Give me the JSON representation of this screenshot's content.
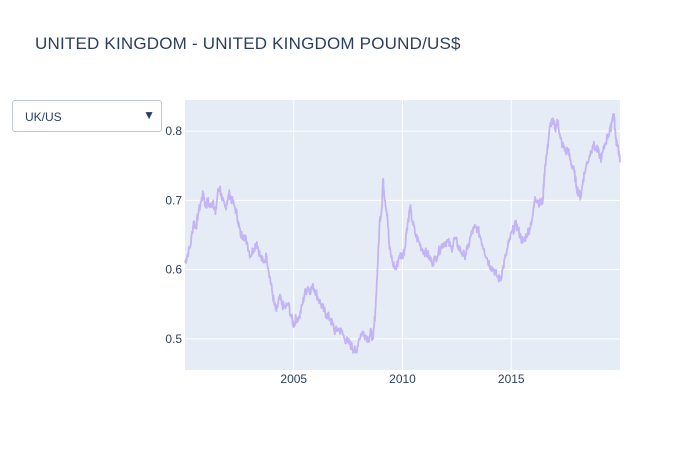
{
  "chart_data": {
    "type": "line",
    "title": "UNITED KINGDOM - UNITED KINGDOM POUND/US$",
    "xlabel": "",
    "ylabel": "",
    "x_range": [
      2000.0,
      2020.0
    ],
    "ylim": [
      0.455,
      0.845
    ],
    "grid": true,
    "x_ticks": [
      {
        "value": 2005,
        "label": "2005"
      },
      {
        "value": 2010,
        "label": "2010"
      },
      {
        "value": 2015,
        "label": "2015"
      }
    ],
    "y_ticks": [
      {
        "value": 0.5,
        "label": "0.5"
      },
      {
        "value": 0.6,
        "label": "0.6"
      },
      {
        "value": 0.7,
        "label": "0.7"
      },
      {
        "value": 0.8,
        "label": "0.8"
      }
    ],
    "series": [
      {
        "color": "#c3b4f3",
        "points": [
          [
            2000.0,
            0.61
          ],
          [
            2000.1,
            0.62
          ],
          [
            2000.25,
            0.635
          ],
          [
            2000.4,
            0.67
          ],
          [
            2000.5,
            0.66
          ],
          [
            2000.6,
            0.68
          ],
          [
            2000.75,
            0.7
          ],
          [
            2000.85,
            0.71
          ],
          [
            2000.95,
            0.69
          ],
          [
            2001.05,
            0.7
          ],
          [
            2001.15,
            0.69
          ],
          [
            2001.3,
            0.7
          ],
          [
            2001.4,
            0.68
          ],
          [
            2001.5,
            0.71
          ],
          [
            2001.6,
            0.72
          ],
          [
            2001.7,
            0.7
          ],
          [
            2001.85,
            0.69
          ],
          [
            2001.95,
            0.7
          ],
          [
            2002.05,
            0.71
          ],
          [
            2002.15,
            0.7
          ],
          [
            2002.3,
            0.69
          ],
          [
            2002.45,
            0.67
          ],
          [
            2002.55,
            0.65
          ],
          [
            2002.7,
            0.65
          ],
          [
            2002.85,
            0.64
          ],
          [
            2003.0,
            0.62
          ],
          [
            2003.15,
            0.63
          ],
          [
            2003.3,
            0.64
          ],
          [
            2003.45,
            0.62
          ],
          [
            2003.6,
            0.61
          ],
          [
            2003.75,
            0.62
          ],
          [
            2003.9,
            0.59
          ],
          [
            2004.0,
            0.57
          ],
          [
            2004.1,
            0.55
          ],
          [
            2004.2,
            0.54
          ],
          [
            2004.35,
            0.56
          ],
          [
            2004.45,
            0.55
          ],
          [
            2004.6,
            0.545
          ],
          [
            2004.75,
            0.55
          ],
          [
            2004.9,
            0.53
          ],
          [
            2005.0,
            0.52
          ],
          [
            2005.1,
            0.53
          ],
          [
            2005.25,
            0.53
          ],
          [
            2005.4,
            0.55
          ],
          [
            2005.5,
            0.565
          ],
          [
            2005.65,
            0.575
          ],
          [
            2005.75,
            0.57
          ],
          [
            2005.9,
            0.575
          ],
          [
            2006.0,
            0.57
          ],
          [
            2006.1,
            0.56
          ],
          [
            2006.25,
            0.55
          ],
          [
            2006.4,
            0.54
          ],
          [
            2006.5,
            0.535
          ],
          [
            2006.65,
            0.53
          ],
          [
            2006.8,
            0.52
          ],
          [
            2006.9,
            0.51
          ],
          [
            2007.05,
            0.515
          ],
          [
            2007.2,
            0.51
          ],
          [
            2007.35,
            0.5
          ],
          [
            2007.5,
            0.495
          ],
          [
            2007.65,
            0.49
          ],
          [
            2007.75,
            0.485
          ],
          [
            2007.85,
            0.48
          ],
          [
            2008.0,
            0.5
          ],
          [
            2008.15,
            0.51
          ],
          [
            2008.3,
            0.505
          ],
          [
            2008.45,
            0.5
          ],
          [
            2008.55,
            0.51
          ],
          [
            2008.65,
            0.5
          ],
          [
            2008.75,
            0.54
          ],
          [
            2008.85,
            0.6
          ],
          [
            2008.95,
            0.67
          ],
          [
            2009.05,
            0.69
          ],
          [
            2009.1,
            0.73
          ],
          [
            2009.2,
            0.7
          ],
          [
            2009.3,
            0.68
          ],
          [
            2009.4,
            0.63
          ],
          [
            2009.55,
            0.61
          ],
          [
            2009.7,
            0.6
          ],
          [
            2009.85,
            0.62
          ],
          [
            2010.0,
            0.62
          ],
          [
            2010.1,
            0.63
          ],
          [
            2010.2,
            0.66
          ],
          [
            2010.3,
            0.68
          ],
          [
            2010.35,
            0.69
          ],
          [
            2010.45,
            0.67
          ],
          [
            2010.6,
            0.65
          ],
          [
            2010.75,
            0.64
          ],
          [
            2010.9,
            0.63
          ],
          [
            2011.05,
            0.625
          ],
          [
            2011.2,
            0.62
          ],
          [
            2011.35,
            0.61
          ],
          [
            2011.5,
            0.615
          ],
          [
            2011.65,
            0.625
          ],
          [
            2011.8,
            0.635
          ],
          [
            2011.95,
            0.64
          ],
          [
            2012.1,
            0.64
          ],
          [
            2012.25,
            0.63
          ],
          [
            2012.4,
            0.645
          ],
          [
            2012.55,
            0.635
          ],
          [
            2012.7,
            0.625
          ],
          [
            2012.85,
            0.62
          ],
          [
            2013.0,
            0.63
          ],
          [
            2013.15,
            0.65
          ],
          [
            2013.3,
            0.66
          ],
          [
            2013.45,
            0.66
          ],
          [
            2013.6,
            0.645
          ],
          [
            2013.75,
            0.63
          ],
          [
            2013.9,
            0.615
          ],
          [
            2014.05,
            0.605
          ],
          [
            2014.2,
            0.6
          ],
          [
            2014.35,
            0.59
          ],
          [
            2014.5,
            0.585
          ],
          [
            2014.6,
            0.6
          ],
          [
            2014.75,
            0.62
          ],
          [
            2014.9,
            0.64
          ],
          [
            2015.05,
            0.655
          ],
          [
            2015.2,
            0.665
          ],
          [
            2015.3,
            0.66
          ],
          [
            2015.45,
            0.645
          ],
          [
            2015.55,
            0.64
          ],
          [
            2015.7,
            0.65
          ],
          [
            2015.85,
            0.66
          ],
          [
            2016.0,
            0.68
          ],
          [
            2016.1,
            0.705
          ],
          [
            2016.2,
            0.7
          ],
          [
            2016.35,
            0.695
          ],
          [
            2016.45,
            0.7
          ],
          [
            2016.55,
            0.75
          ],
          [
            2016.65,
            0.77
          ],
          [
            2016.75,
            0.8
          ],
          [
            2016.85,
            0.815
          ],
          [
            2016.95,
            0.81
          ],
          [
            2017.05,
            0.805
          ],
          [
            2017.15,
            0.815
          ],
          [
            2017.25,
            0.79
          ],
          [
            2017.35,
            0.78
          ],
          [
            2017.5,
            0.77
          ],
          [
            2017.6,
            0.775
          ],
          [
            2017.7,
            0.76
          ],
          [
            2017.8,
            0.75
          ],
          [
            2017.9,
            0.74
          ],
          [
            2018.0,
            0.72
          ],
          [
            2018.1,
            0.71
          ],
          [
            2018.2,
            0.705
          ],
          [
            2018.3,
            0.73
          ],
          [
            2018.45,
            0.75
          ],
          [
            2018.6,
            0.765
          ],
          [
            2018.75,
            0.78
          ],
          [
            2018.9,
            0.775
          ],
          [
            2019.0,
            0.77
          ],
          [
            2019.15,
            0.76
          ],
          [
            2019.3,
            0.78
          ],
          [
            2019.45,
            0.795
          ],
          [
            2019.55,
            0.8
          ],
          [
            2019.65,
            0.82
          ],
          [
            2019.72,
            0.825
          ],
          [
            2019.8,
            0.79
          ],
          [
            2019.9,
            0.78
          ],
          [
            2020.0,
            0.755
          ]
        ]
      }
    ]
  },
  "controls": {
    "dropdown": {
      "selected": "UK/US",
      "arrow_icon": "triangle-down-icon"
    }
  }
}
